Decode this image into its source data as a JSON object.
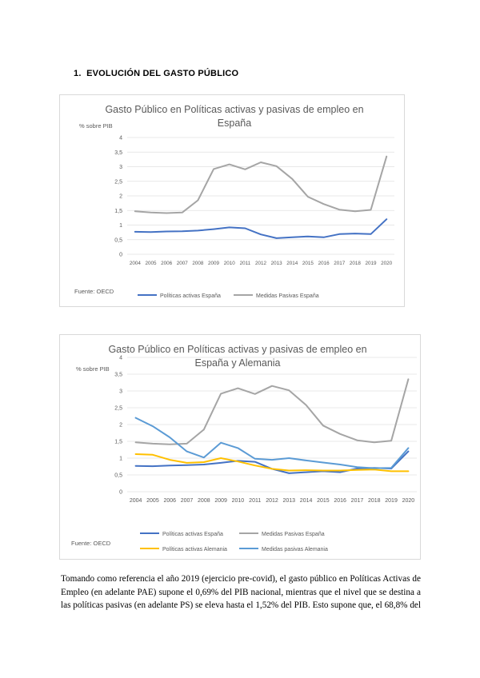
{
  "heading": {
    "number": "1.",
    "text": "EVOLUCIÓN DEL GASTO PÚBLICO"
  },
  "colors": {
    "spain_active": "#4472c4",
    "spain_passive": "#a5a5a5",
    "germany_active": "#ffc000",
    "germany_passive": "#5b9bd5",
    "grid": "#e0e0e0",
    "text": "#595959"
  },
  "chart_data": [
    {
      "type": "line",
      "title_lines": [
        "Gasto Público en Políticas activas y pasivas de empleo en",
        "España"
      ],
      "ylabel": "% sobre PIB",
      "xlabel": "",
      "ylim": [
        0,
        4
      ],
      "yticks": [
        "0",
        "0,5",
        "1",
        "1,5",
        "2",
        "2,5",
        "3",
        "3,5",
        "4"
      ],
      "categories": [
        "2004",
        "2005",
        "2006",
        "2007",
        "2008",
        "2009",
        "2010",
        "2011",
        "2012",
        "2013",
        "2014",
        "2015",
        "2016",
        "2017",
        "2018",
        "2019",
        "2020"
      ],
      "source": "Fuente: OECD",
      "series": [
        {
          "name": "Políticas activas España",
          "color": "#4472c4",
          "values": [
            0.77,
            0.76,
            0.78,
            0.79,
            0.81,
            0.86,
            0.92,
            0.89,
            0.68,
            0.55,
            0.58,
            0.61,
            0.58,
            0.69,
            0.71,
            0.69,
            1.2
          ]
        },
        {
          "name": "Medidas Pasivas España",
          "color": "#a5a5a5",
          "values": [
            1.47,
            1.43,
            1.41,
            1.43,
            1.85,
            2.92,
            3.08,
            2.91,
            3.15,
            3.02,
            2.58,
            1.97,
            1.72,
            1.53,
            1.47,
            1.52,
            3.35
          ]
        }
      ]
    },
    {
      "type": "line",
      "title_lines": [
        "Gasto Público en Políticas activas y pasivas de empleo en",
        "España y Alemania"
      ],
      "ylabel": "% sobre PIB",
      "xlabel": "",
      "ylim": [
        0,
        4
      ],
      "yticks": [
        "0",
        "0,5",
        "1",
        "1,5",
        "2",
        "2,5",
        "3",
        "3,5",
        "4"
      ],
      "categories": [
        "2004",
        "2005",
        "2006",
        "2007",
        "2008",
        "2009",
        "2010",
        "2011",
        "2012",
        "2013",
        "2014",
        "2015",
        "2016",
        "2017",
        "2018",
        "2019",
        "2020"
      ],
      "source": "Fuente: OECD",
      "series": [
        {
          "name": "Políticas activas España",
          "color": "#4472c4",
          "values": [
            0.77,
            0.76,
            0.78,
            0.79,
            0.81,
            0.86,
            0.92,
            0.89,
            0.68,
            0.55,
            0.58,
            0.61,
            0.58,
            0.69,
            0.71,
            0.69,
            1.2
          ]
        },
        {
          "name": "Medidas Pasivas España",
          "color": "#a5a5a5",
          "values": [
            1.47,
            1.43,
            1.41,
            1.43,
            1.85,
            2.92,
            3.08,
            2.91,
            3.15,
            3.02,
            2.58,
            1.97,
            1.72,
            1.53,
            1.47,
            1.52,
            3.35
          ]
        },
        {
          "name": "Políticas activas Alemania",
          "color": "#ffc000",
          "values": [
            1.12,
            1.1,
            0.95,
            0.86,
            0.88,
            1.0,
            0.9,
            0.78,
            0.68,
            0.63,
            0.64,
            0.63,
            0.63,
            0.65,
            0.66,
            0.61,
            0.61
          ]
        },
        {
          "name": "Medidas pasivas Alemania",
          "color": "#5b9bd5",
          "values": [
            2.2,
            1.95,
            1.62,
            1.2,
            1.02,
            1.46,
            1.3,
            0.98,
            0.95,
            1.0,
            0.93,
            0.87,
            0.81,
            0.73,
            0.7,
            0.71,
            1.3
          ]
        }
      ]
    }
  ],
  "body_text": [
    "Tomando como referencia el año 2019 (ejercicio pre-covid), el gasto público en Políticas Activas de",
    "Empleo (en adelante PAE) supone el 0,69% del PIB nacional, mientras que el nivel que se destina a",
    "las políticas pasivas (en adelante PS) se eleva hasta el 1,52% del PIB. Esto supone que, el 68,8% del"
  ]
}
